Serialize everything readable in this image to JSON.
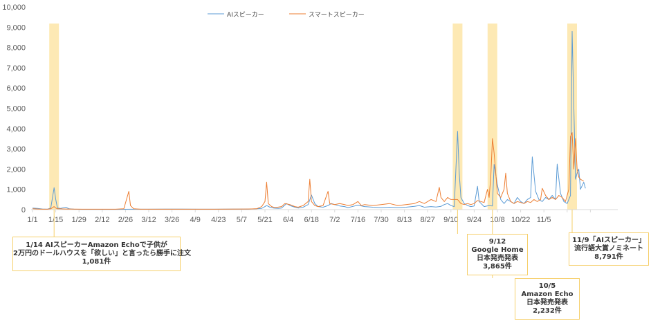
{
  "chart_data": {
    "type": "line",
    "ylim": [
      0,
      10000
    ],
    "yticks": [
      "0",
      "1,000",
      "2,000",
      "3,000",
      "4,000",
      "5,000",
      "6,000",
      "7,000",
      "8,000",
      "9,000",
      "10,000"
    ],
    "xticks": [
      "1/1",
      "1/15",
      "1/29",
      "2/12",
      "2/26",
      "3/12",
      "3/26",
      "4/9",
      "4/23",
      "5/7",
      "5/21",
      "6/4",
      "6/18",
      "7/2",
      "7/16",
      "7/30",
      "8/13",
      "8/27",
      "9/10",
      "9/24",
      "10/8",
      "10/22",
      "11/5"
    ],
    "series": [
      {
        "name": "AIスピーカー",
        "color": "#5b9bd5",
        "points": [
          [
            0,
            80
          ],
          [
            3,
            60
          ],
          [
            6,
            30
          ],
          [
            9,
            20
          ],
          [
            11,
            80
          ],
          [
            13,
            1081
          ],
          [
            14,
            500
          ],
          [
            15,
            80
          ],
          [
            17,
            60
          ],
          [
            20,
            120
          ],
          [
            22,
            40
          ],
          [
            25,
            20
          ],
          [
            30,
            15
          ],
          [
            40,
            15
          ],
          [
            50,
            15
          ],
          [
            60,
            20
          ],
          [
            70,
            20
          ],
          [
            80,
            25
          ],
          [
            90,
            25
          ],
          [
            100,
            20
          ],
          [
            110,
            20
          ],
          [
            120,
            25
          ],
          [
            130,
            25
          ],
          [
            135,
            40
          ],
          [
            138,
            60
          ],
          [
            140,
            150
          ],
          [
            141,
            200
          ],
          [
            143,
            120
          ],
          [
            145,
            80
          ],
          [
            148,
            60
          ],
          [
            150,
            80
          ],
          [
            153,
            300
          ],
          [
            155,
            200
          ],
          [
            158,
            120
          ],
          [
            160,
            80
          ],
          [
            163,
            120
          ],
          [
            166,
            250
          ],
          [
            168,
            720
          ],
          [
            170,
            300
          ],
          [
            172,
            150
          ],
          [
            175,
            120
          ],
          [
            178,
            200
          ],
          [
            180,
            300
          ],
          [
            182,
            250
          ],
          [
            185,
            180
          ],
          [
            188,
            150
          ],
          [
            190,
            100
          ],
          [
            193,
            160
          ],
          [
            196,
            220
          ],
          [
            200,
            150
          ],
          [
            205,
            120
          ],
          [
            210,
            100
          ],
          [
            215,
            120
          ],
          [
            220,
            100
          ],
          [
            225,
            120
          ],
          [
            230,
            160
          ],
          [
            233,
            200
          ],
          [
            236,
            120
          ],
          [
            240,
            150
          ],
          [
            243,
            130
          ],
          [
            246,
            160
          ],
          [
            248,
            250
          ],
          [
            250,
            300
          ],
          [
            252,
            200
          ],
          [
            254,
            150
          ],
          [
            256,
            3865
          ],
          [
            257,
            1800
          ],
          [
            258,
            600
          ],
          [
            260,
            300
          ],
          [
            262,
            200
          ],
          [
            264,
            150
          ],
          [
            266,
            180
          ],
          [
            268,
            1150
          ],
          [
            269,
            400
          ],
          [
            272,
            150
          ],
          [
            275,
            200
          ],
          [
            277,
            180
          ],
          [
            278,
            2232
          ],
          [
            280,
            1200
          ],
          [
            282,
            500
          ],
          [
            284,
            300
          ],
          [
            286,
            500
          ],
          [
            288,
            400
          ],
          [
            290,
            300
          ],
          [
            292,
            600
          ],
          [
            294,
            400
          ],
          [
            296,
            300
          ],
          [
            298,
            500
          ],
          [
            300,
            600
          ],
          [
            301,
            2600
          ],
          [
            303,
            900
          ],
          [
            305,
            500
          ],
          [
            307,
            400
          ],
          [
            309,
            600
          ],
          [
            311,
            500
          ],
          [
            313,
            700
          ],
          [
            315,
            500
          ],
          [
            316,
            2250
          ],
          [
            318,
            800
          ],
          [
            320,
            400
          ],
          [
            322,
            300
          ],
          [
            324,
            700
          ],
          [
            325,
            8791
          ],
          [
            327,
            1500
          ],
          [
            328,
            1800
          ],
          [
            329,
            2000
          ],
          [
            330,
            1000
          ],
          [
            332,
            1350
          ],
          [
            333,
            1050
          ]
        ]
      },
      {
        "name": "スマートスピーカー",
        "color": "#ed7d31",
        "points": [
          [
            0,
            40
          ],
          [
            3,
            30
          ],
          [
            6,
            20
          ],
          [
            9,
            20
          ],
          [
            11,
            40
          ],
          [
            13,
            150
          ],
          [
            14,
            80
          ],
          [
            15,
            40
          ],
          [
            20,
            30
          ],
          [
            30,
            20
          ],
          [
            40,
            20
          ],
          [
            50,
            20
          ],
          [
            55,
            40
          ],
          [
            58,
            900
          ],
          [
            59,
            200
          ],
          [
            61,
            40
          ],
          [
            65,
            20
          ],
          [
            80,
            20
          ],
          [
            100,
            20
          ],
          [
            110,
            20
          ],
          [
            120,
            25
          ],
          [
            130,
            30
          ],
          [
            135,
            40
          ],
          [
            138,
            150
          ],
          [
            140,
            400
          ],
          [
            141,
            1360
          ],
          [
            142,
            300
          ],
          [
            144,
            150
          ],
          [
            146,
            100
          ],
          [
            150,
            150
          ],
          [
            152,
            300
          ],
          [
            155,
            250
          ],
          [
            158,
            150
          ],
          [
            160,
            120
          ],
          [
            163,
            200
          ],
          [
            166,
            400
          ],
          [
            167,
            1500
          ],
          [
            168,
            400
          ],
          [
            170,
            200
          ],
          [
            172,
            150
          ],
          [
            175,
            200
          ],
          [
            178,
            900
          ],
          [
            179,
            300
          ],
          [
            182,
            250
          ],
          [
            185,
            300
          ],
          [
            188,
            250
          ],
          [
            190,
            200
          ],
          [
            193,
            250
          ],
          [
            196,
            400
          ],
          [
            198,
            200
          ],
          [
            200,
            250
          ],
          [
            205,
            200
          ],
          [
            210,
            250
          ],
          [
            215,
            300
          ],
          [
            220,
            200
          ],
          [
            225,
            250
          ],
          [
            230,
            300
          ],
          [
            233,
            400
          ],
          [
            236,
            300
          ],
          [
            240,
            500
          ],
          [
            243,
            400
          ],
          [
            245,
            1100
          ],
          [
            246,
            600
          ],
          [
            248,
            400
          ],
          [
            250,
            600
          ],
          [
            252,
            500
          ],
          [
            254,
            500
          ],
          [
            256,
            500
          ],
          [
            258,
            300
          ],
          [
            260,
            250
          ],
          [
            262,
            300
          ],
          [
            264,
            250
          ],
          [
            266,
            300
          ],
          [
            268,
            450
          ],
          [
            270,
            400
          ],
          [
            272,
            350
          ],
          [
            274,
            1000
          ],
          [
            275,
            600
          ],
          [
            276,
            1600
          ],
          [
            277,
            3500
          ],
          [
            278,
            2800
          ],
          [
            280,
            800
          ],
          [
            282,
            600
          ],
          [
            284,
            1000
          ],
          [
            285,
            1800
          ],
          [
            286,
            800
          ],
          [
            288,
            400
          ],
          [
            290,
            300
          ],
          [
            292,
            400
          ],
          [
            294,
            350
          ],
          [
            296,
            300
          ],
          [
            298,
            400
          ],
          [
            300,
            350
          ],
          [
            302,
            500
          ],
          [
            304,
            400
          ],
          [
            306,
            500
          ],
          [
            307,
            1050
          ],
          [
            309,
            700
          ],
          [
            311,
            500
          ],
          [
            313,
            600
          ],
          [
            315,
            500
          ],
          [
            317,
            700
          ],
          [
            319,
            600
          ],
          [
            321,
            400
          ],
          [
            323,
            1000
          ],
          [
            324,
            3600
          ],
          [
            325,
            3800
          ],
          [
            326,
            2000
          ],
          [
            327,
            3500
          ],
          [
            328,
            2000
          ],
          [
            329,
            1600
          ],
          [
            330,
            1500
          ],
          [
            332,
            1400
          ]
        ]
      }
    ],
    "highlight_days": [
      13,
      256,
      277,
      325
    ],
    "annotations": [
      {
        "day": 13,
        "lines": [
          "1/14 AIスピーカーAmazon Echoで子供が",
          "2万円のドールハウスを「欲しい」と言ったら勝手に注文",
          "1,081件"
        ]
      },
      {
        "day": 256,
        "lines": [
          "9/12",
          "Google Home",
          "日本発売発表",
          "3,865件"
        ]
      },
      {
        "day": 277,
        "lines": [
          "10/5",
          "Amazon Echo",
          "日本発売発表",
          "2,232件"
        ]
      },
      {
        "day": 325,
        "lines": [
          "11/9「AIスピーカー」",
          "流行語大賞ノミネート",
          "8,791件"
        ]
      }
    ]
  }
}
